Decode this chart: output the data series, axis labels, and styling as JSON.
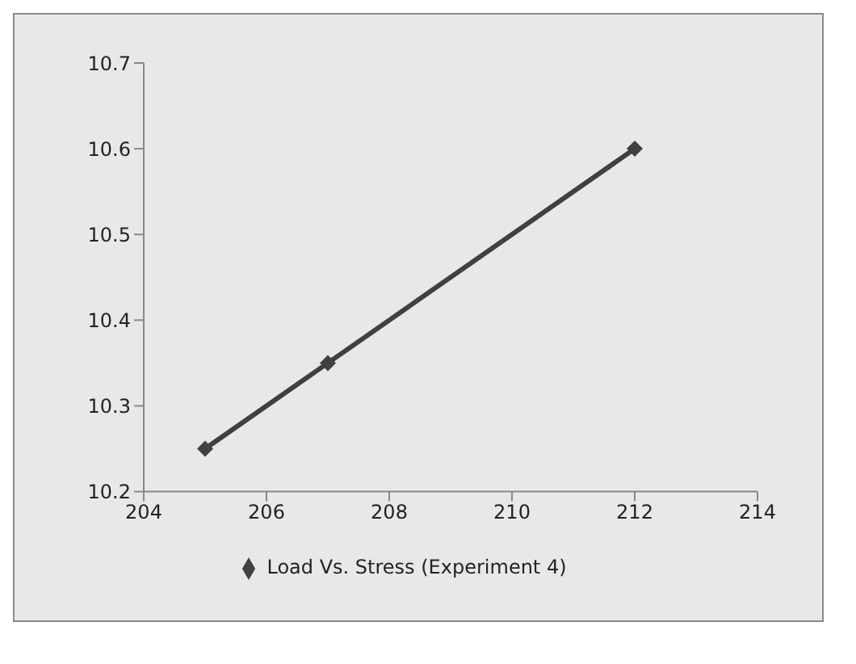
{
  "chart_data": {
    "type": "line",
    "x": [
      205,
      207,
      212
    ],
    "series": [
      {
        "name": "Load Vs. Stress (Experiment 4)",
        "color": "#404040",
        "values": [
          10.25,
          10.35,
          10.6
        ]
      }
    ],
    "xlim": [
      204,
      214
    ],
    "xticks": [
      204,
      206,
      208,
      210,
      212,
      214
    ],
    "ylim": [
      10.2,
      10.7
    ],
    "yticks": [
      10.2,
      10.3,
      10.4,
      10.5,
      10.6,
      10.7
    ],
    "grid": false,
    "legend": "bottom",
    "marker": "diamond",
    "line_style": "solid"
  }
}
